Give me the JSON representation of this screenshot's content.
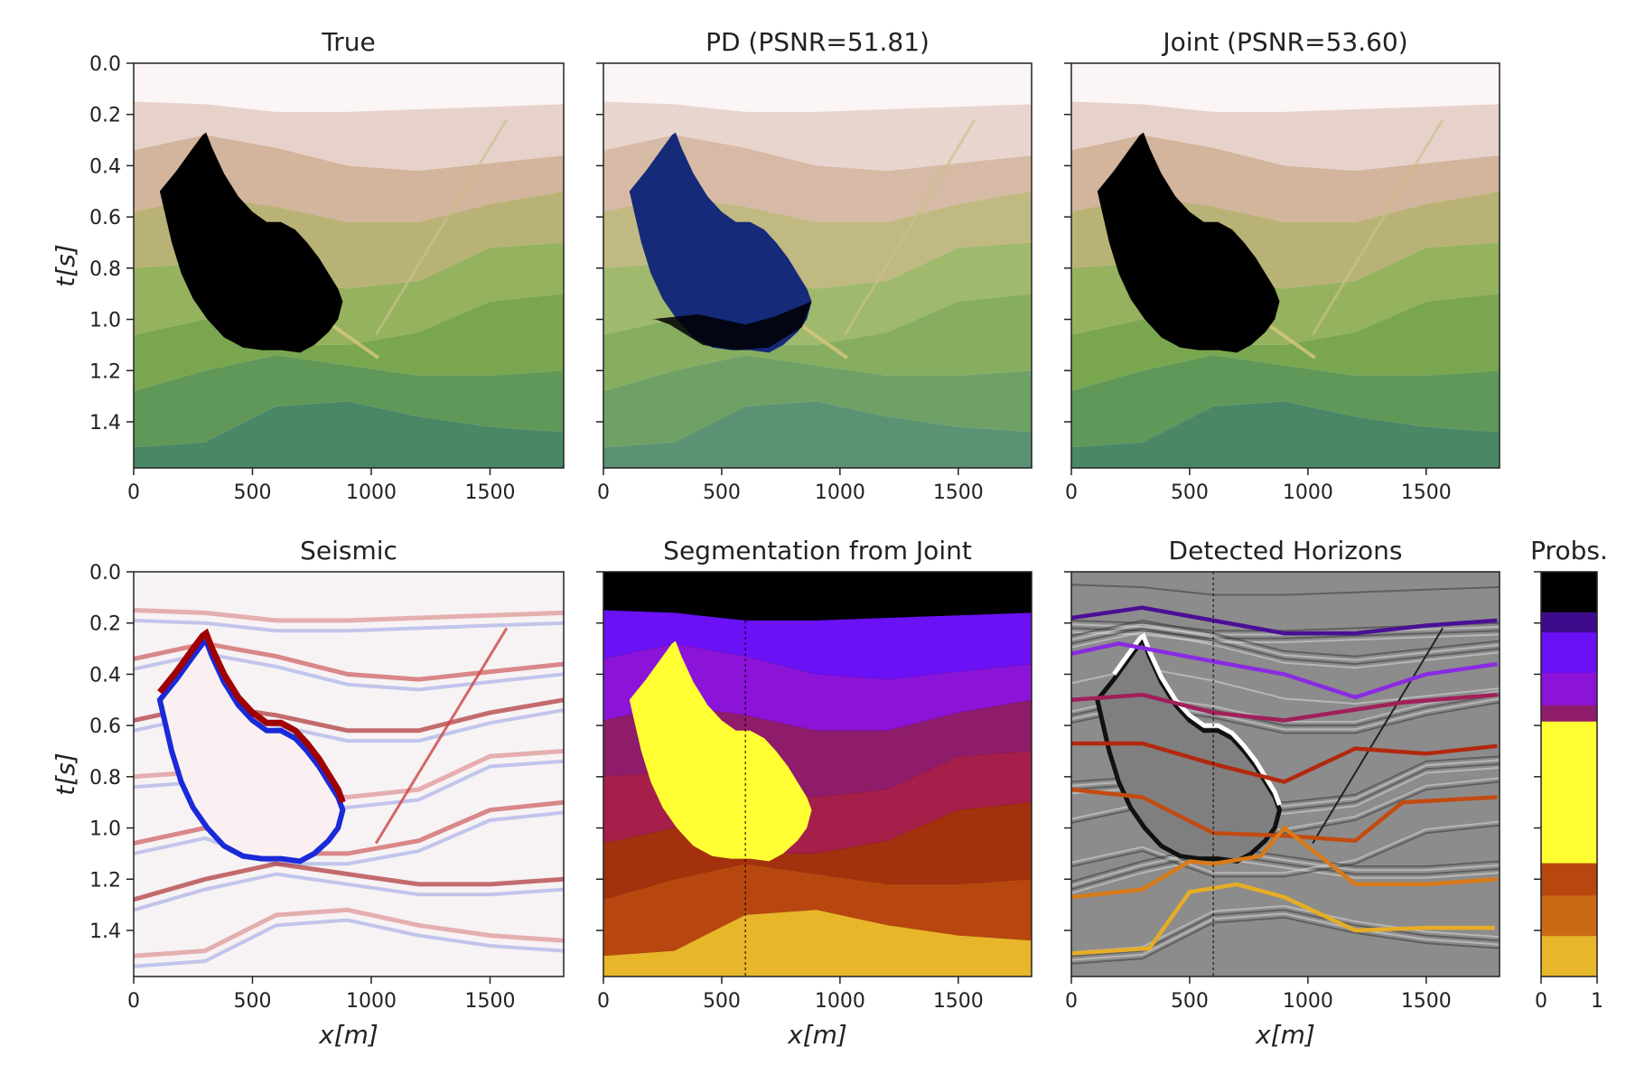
{
  "figure": {
    "panels": [
      {
        "id": "true",
        "title": "True",
        "kind": "velocity",
        "tint": "true"
      },
      {
        "id": "pd",
        "title": "PD (PSNR=51.81)",
        "kind": "velocity",
        "tint": "pd"
      },
      {
        "id": "joint",
        "title": "Joint (PSNR=53.60)",
        "kind": "velocity",
        "tint": "joint"
      },
      {
        "id": "seismic",
        "title": "Seismic",
        "kind": "seismic"
      },
      {
        "id": "segmentation",
        "title": "Segmentation from Joint",
        "kind": "segmentation"
      },
      {
        "id": "horizons",
        "title": "Detected Horizons",
        "kind": "horizons"
      }
    ],
    "colorbar": {
      "title": "Probs.",
      "ticks": [
        "0",
        "1"
      ]
    },
    "colors": {
      "salt": "#000000",
      "pd_salt": "#152a78",
      "segmentation_classes": [
        "#000000",
        "#3d0c8c",
        "#6a11f5",
        "#8b14d8",
        "#8f1c6a",
        "#a51f4a",
        "#a3310d",
        "#b8470f",
        "#c86a14",
        "#d9941a",
        "#e8b62a"
      ],
      "salt_class": "#ffff33"
    }
  },
  "chart_data": {
    "type": "heatmap",
    "xlabel": "x[m]",
    "ylabel": "t[s]",
    "xlim": [
      0,
      1810
    ],
    "ylim": [
      1.58,
      0.0
    ],
    "xticks": [
      "0",
      "500",
      "1000",
      "1500"
    ],
    "yticks": [
      "0.0",
      "0.2",
      "0.4",
      "0.6",
      "0.8",
      "1.0",
      "1.2",
      "1.4"
    ],
    "grid": false,
    "salt_body_outline": {
      "x": [
        110,
        180,
        250,
        290,
        305,
        330,
        380,
        440,
        500,
        560,
        620,
        680,
        730,
        780,
        820,
        860,
        880,
        860,
        820,
        760,
        700,
        620,
        540,
        460,
        380,
        310,
        250,
        200,
        160,
        130
      ],
      "t": [
        0.5,
        0.42,
        0.33,
        0.28,
        0.27,
        0.33,
        0.43,
        0.52,
        0.58,
        0.62,
        0.62,
        0.65,
        0.7,
        0.76,
        0.82,
        0.88,
        0.93,
        1.0,
        1.05,
        1.1,
        1.13,
        1.12,
        1.12,
        1.11,
        1.07,
        1.0,
        0.92,
        0.82,
        0.7,
        0.58
      ]
    },
    "fault": {
      "x": [
        1020,
        1570
      ],
      "t": [
        1.06,
        0.22
      ]
    },
    "detected_horizons": [
      {
        "color": "#4b0f96",
        "x": [
          0,
          300,
          600,
          900,
          1200,
          1500,
          1800
        ],
        "t": [
          0.18,
          0.14,
          0.19,
          0.24,
          0.24,
          0.21,
          0.19
        ]
      },
      {
        "color": "#8a2be2",
        "x": [
          0,
          200,
          600,
          900,
          1200,
          1500,
          1800
        ],
        "t": [
          0.32,
          0.28,
          0.35,
          0.4,
          0.49,
          0.4,
          0.36
        ]
      },
      {
        "color": "#a0205a",
        "x": [
          0,
          300,
          600,
          900,
          1400,
          1800
        ],
        "t": [
          0.5,
          0.48,
          0.55,
          0.58,
          0.51,
          0.48
        ]
      },
      {
        "color": "#b2280e",
        "x": [
          0,
          300,
          600,
          900,
          1200,
          1500,
          1800
        ],
        "t": [
          0.67,
          0.67,
          0.75,
          0.82,
          0.69,
          0.71,
          0.68
        ]
      },
      {
        "color": "#c34a10",
        "x": [
          0,
          300,
          600,
          900,
          1200,
          1400,
          1800
        ],
        "t": [
          0.85,
          0.88,
          1.02,
          1.03,
          1.05,
          0.9,
          0.88
        ]
      },
      {
        "color": "#d97a1a",
        "x": [
          0,
          300,
          500,
          600,
          800,
          900,
          1200,
          1500,
          1800
        ],
        "t": [
          1.27,
          1.24,
          1.13,
          1.14,
          1.11,
          1.0,
          1.22,
          1.22,
          1.2
        ]
      },
      {
        "color": "#e6ad26",
        "x": [
          0,
          330,
          500,
          700,
          900,
          1200,
          1500,
          1790
        ],
        "t": [
          1.49,
          1.47,
          1.25,
          1.22,
          1.27,
          1.4,
          1.39,
          1.39
        ]
      }
    ]
  }
}
